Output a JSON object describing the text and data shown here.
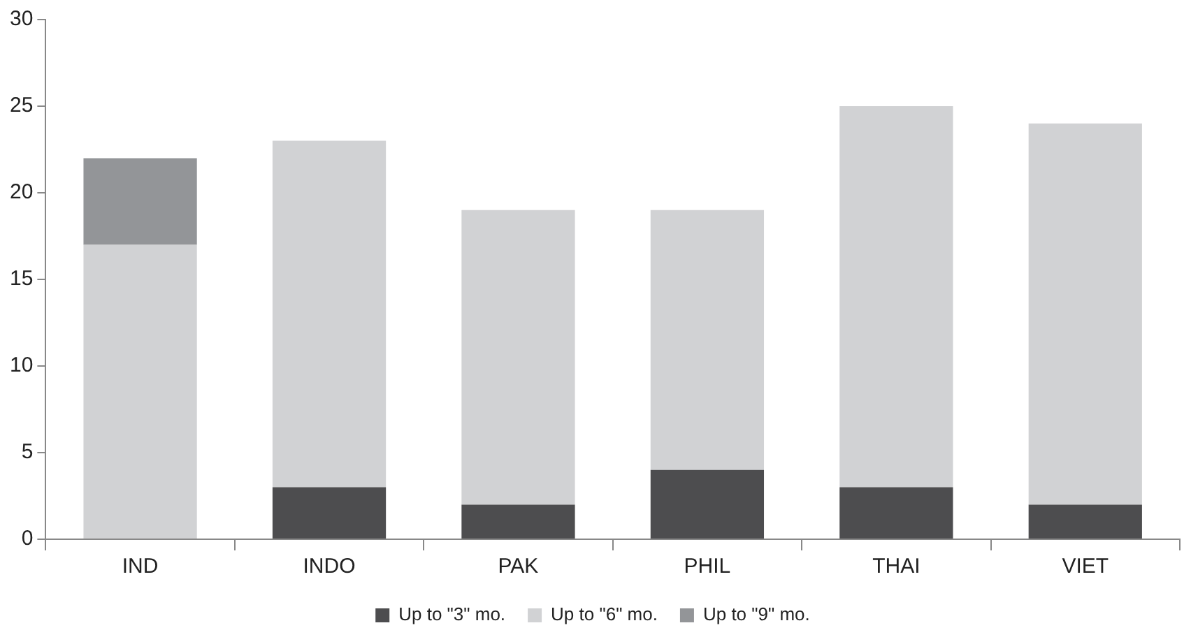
{
  "chart_data": {
    "type": "bar",
    "stacked": true,
    "categories": [
      "IND",
      "INDO",
      "PAK",
      "PHIL",
      "THAI",
      "VIET"
    ],
    "series": [
      {
        "name": "Up to \"3\" mo.",
        "color": "#4d4d4f",
        "values": [
          0,
          3,
          2,
          4,
          3,
          2
        ]
      },
      {
        "name": "Up to \"6\" mo.",
        "color": "#d1d2d4",
        "values": [
          17,
          20,
          17,
          15,
          22,
          22
        ]
      },
      {
        "name": "Up to \"9\" mo.",
        "color": "#939598",
        "values": [
          5,
          null,
          null,
          null,
          null,
          null
        ]
      }
    ],
    "ylim": [
      0,
      30
    ],
    "yticks": [
      0,
      5,
      10,
      15,
      20,
      25,
      30
    ],
    "grid": false,
    "legend": "bottom"
  }
}
